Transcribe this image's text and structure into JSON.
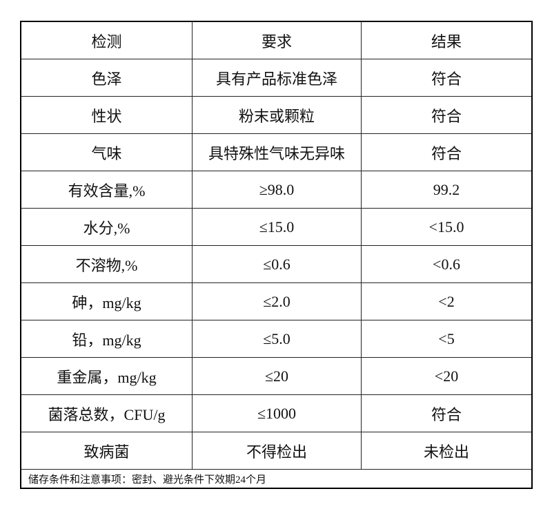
{
  "table": {
    "headers": [
      "检测",
      "要求",
      "结果"
    ],
    "rows": [
      [
        "色泽",
        "具有产品标准色泽",
        "符合"
      ],
      [
        "性状",
        "粉末或颗粒",
        "符合"
      ],
      [
        "气味",
        "具特殊性气味无异味",
        "符合"
      ],
      [
        "有效含量,%",
        "≥98.0",
        "99.2"
      ],
      [
        "水分,%",
        "≤15.0",
        "<15.0"
      ],
      [
        "不溶物,%",
        "≤0.6",
        "<0.6"
      ],
      [
        "砷，mg/kg",
        "≤2.0",
        "<2"
      ],
      [
        "铅，mg/kg",
        "≤5.0",
        "<5"
      ],
      [
        "重金属，mg/kg",
        "≤20",
        "<20"
      ],
      [
        "菌落总数，CFU/g",
        "≤1000",
        "符合"
      ],
      [
        "致病菌",
        "不得检出",
        "未检出"
      ]
    ],
    "footer": "储存条件和注意事项：密封、避光条件下效期24个月"
  }
}
